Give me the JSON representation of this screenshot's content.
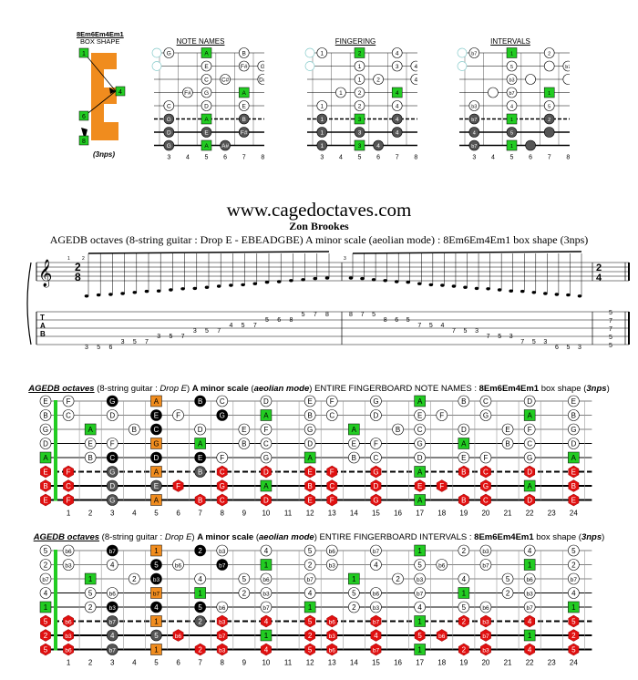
{
  "top": {
    "box_shape_title": "8Em6Em4Em1",
    "box_shape_subtitle": "BOX SHAPE",
    "nps_label": "(3nps)",
    "sections": [
      "NOTE NAMES",
      "FINGERING",
      "INTERVALS"
    ],
    "fret_numbers": [
      "3",
      "4",
      "5",
      "6",
      "7",
      "8"
    ]
  },
  "header": {
    "url": "www.cagedoctaves.com",
    "author": "Zon Brookes",
    "subtitle": "AGEDB octaves (8-string guitar : Drop E - EBEADGBE) A minor scale (aeolian mode) : 8Em6Em4Em1 box shape (3nps)"
  },
  "tab": {
    "time_signature": [
      "2",
      "8"
    ],
    "end_time_signature": [
      "2",
      "4"
    ],
    "measure_numbers": [
      "1",
      "2",
      "3"
    ],
    "ascending": [
      {
        "s": 8,
        "f": "3"
      },
      {
        "s": 8,
        "f": "5"
      },
      {
        "s": 8,
        "f": "6"
      },
      {
        "s": 7,
        "f": "3"
      },
      {
        "s": 7,
        "f": "5"
      },
      {
        "s": 7,
        "f": "7"
      },
      {
        "s": 6,
        "f": "3"
      },
      {
        "s": 6,
        "f": "5"
      },
      {
        "s": 6,
        "f": "7"
      },
      {
        "s": 5,
        "f": "3"
      },
      {
        "s": 5,
        "f": "5"
      },
      {
        "s": 5,
        "f": "7"
      },
      {
        "s": 4,
        "f": "4"
      },
      {
        "s": 4,
        "f": "5"
      },
      {
        "s": 4,
        "f": "7"
      },
      {
        "s": 3,
        "f": "5"
      },
      {
        "s": 3,
        "f": "6"
      },
      {
        "s": 3,
        "f": "8"
      },
      {
        "s": 2,
        "f": "5"
      },
      {
        "s": 2,
        "f": "7"
      },
      {
        "s": 2,
        "f": "8"
      }
    ],
    "descending": [
      {
        "s": 2,
        "f": "8"
      },
      {
        "s": 2,
        "f": "7"
      },
      {
        "s": 2,
        "f": "5"
      },
      {
        "s": 3,
        "f": "8"
      },
      {
        "s": 3,
        "f": "6"
      },
      {
        "s": 3,
        "f": "5"
      },
      {
        "s": 4,
        "f": "7"
      },
      {
        "s": 4,
        "f": "5"
      },
      {
        "s": 4,
        "f": "4"
      },
      {
        "s": 5,
        "f": "7"
      },
      {
        "s": 5,
        "f": "5"
      },
      {
        "s": 5,
        "f": "3"
      },
      {
        "s": 6,
        "f": "7"
      },
      {
        "s": 6,
        "f": "5"
      },
      {
        "s": 6,
        "f": "3"
      },
      {
        "s": 7,
        "f": "7"
      },
      {
        "s": 7,
        "f": "5"
      },
      {
        "s": 7,
        "f": "3"
      },
      {
        "s": 8,
        "f": "6"
      },
      {
        "s": 8,
        "f": "5"
      },
      {
        "s": 8,
        "f": "3"
      }
    ],
    "end_chord": [
      "5",
      "7",
      "7",
      "5",
      "5"
    ]
  },
  "fretboard_notes": {
    "title_parts": [
      "AGEDB octaves",
      " (8-string guitar : ",
      "Drop E",
      ") ",
      "A minor scale",
      " (",
      "aeolian mode",
      ") ENTIRE FINGERBOARD NOTE NAMES : ",
      "8Em6Em4Em1",
      " box shape (",
      "3nps",
      ")"
    ],
    "open": [
      "E",
      "B",
      "G",
      "D",
      "A",
      "E",
      "B",
      "E"
    ],
    "fret_numbers": [
      "1",
      "2",
      "3",
      "4",
      "5",
      "6",
      "7",
      "8",
      "9",
      "10",
      "11",
      "12",
      "13",
      "14",
      "15",
      "16",
      "17",
      "18",
      "19",
      "20",
      "21",
      "22",
      "23",
      "24"
    ]
  },
  "fretboard_intervals": {
    "title_parts": [
      "AGEDB octaves",
      " (8-string guitar : ",
      "Drop E",
      ") ",
      "A minor scale",
      " (",
      "aeolian mode",
      ") ENTIRE FINGERBOARD INTERVALS : ",
      "8Em6Em4Em1",
      " box shape (",
      "3nps",
      ")"
    ],
    "open": [
      "5",
      "2",
      "b7",
      "4",
      "1",
      "5",
      "2",
      "5"
    ],
    "fret_numbers": [
      "1",
      "2",
      "3",
      "4",
      "5",
      "6",
      "7",
      "8",
      "9",
      "10",
      "11",
      "12",
      "13",
      "14",
      "15",
      "16",
      "17",
      "18",
      "19",
      "20",
      "21",
      "22",
      "23",
      "24"
    ]
  },
  "colors": {
    "root_green": "#22cc22",
    "box_orange": "#f08c1e",
    "low_string_red": "#e01010",
    "dark_note": "#555555",
    "black_note": "#000000",
    "ghost_teal": "#88cccc"
  }
}
